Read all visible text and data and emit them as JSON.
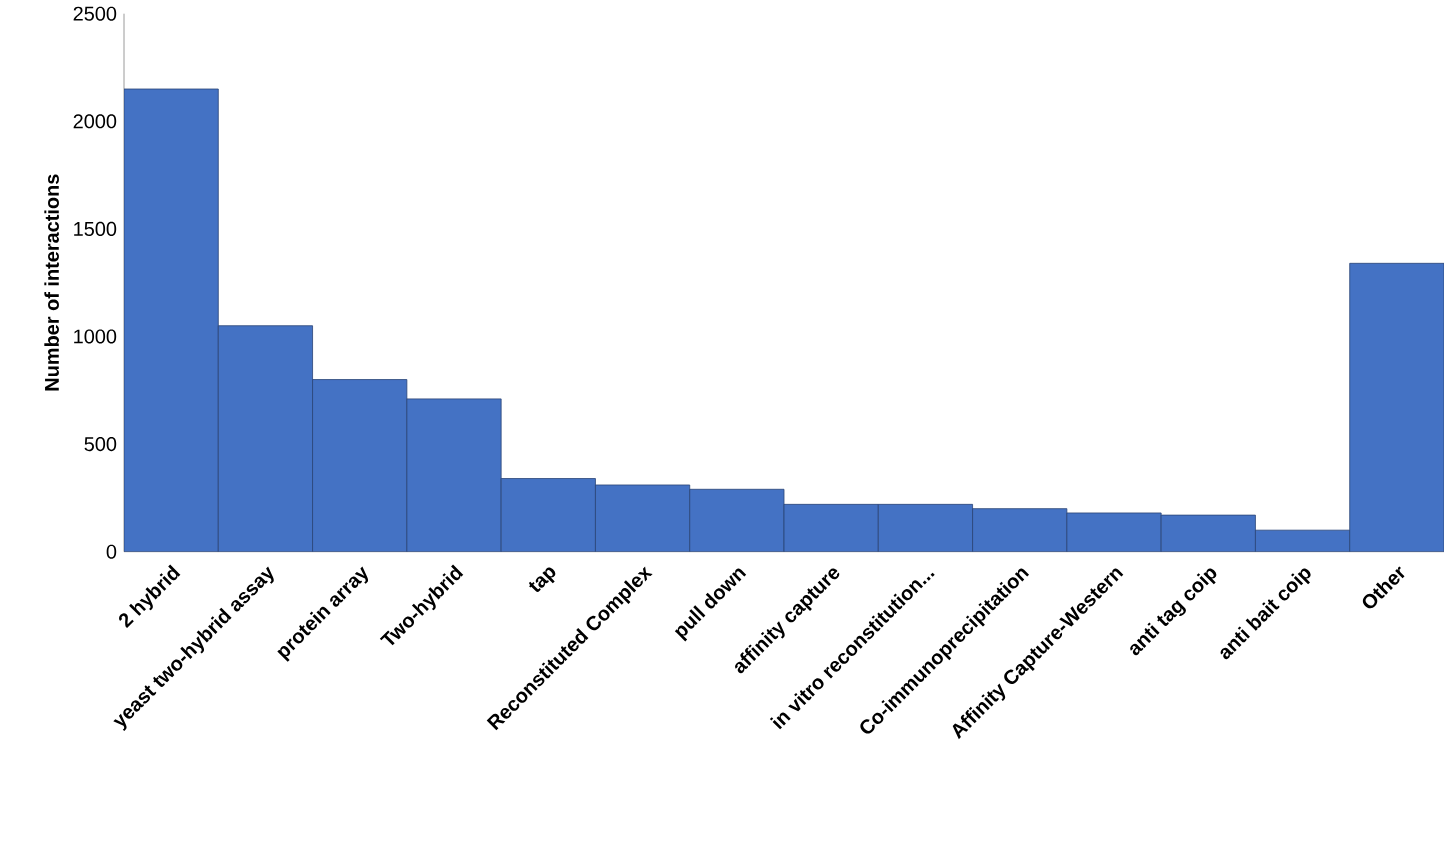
{
  "chart_data": {
    "type": "bar",
    "ylabel": "Number of interactions",
    "categories": [
      "2 hybrid",
      "yeast two-hybrid assay",
      "protein array",
      "Two-hybrid",
      "tap",
      "Reconstituted Complex",
      "pull down",
      "affinity capture",
      "in vitro reconstitution...",
      "Co-immunoprecipitation",
      "Affinity Capture-Western",
      "anti tag coip",
      "anti bait coip",
      "Other"
    ],
    "values": [
      2150,
      1050,
      800,
      710,
      340,
      310,
      290,
      220,
      220,
      200,
      180,
      170,
      100,
      1340
    ],
    "color": "#4472c4",
    "ylim": [
      0,
      2500
    ],
    "yticks": [
      0,
      500,
      1000,
      1500,
      2000,
      2500
    ],
    "grid": false
  }
}
